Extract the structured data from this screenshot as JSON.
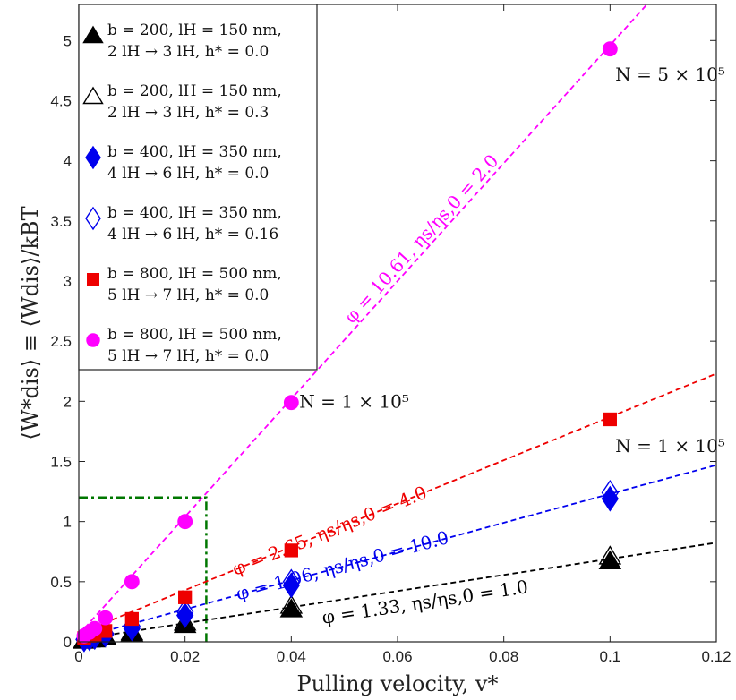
{
  "chart_data": {
    "type": "scatter",
    "title": "",
    "xlabel": "Pulling velocity, v*",
    "ylabel": "⟨W*dis⟩ ≡ ⟨Wdis⟩/kBT",
    "xlim": [
      0,
      0.12
    ],
    "ylim": [
      0,
      5.3
    ],
    "xticks": [
      "0",
      "0.02",
      "0.04",
      "0.06",
      "0.08",
      "0.1",
      "0.12"
    ],
    "xtick_values": [
      0,
      0.02,
      0.04,
      0.06,
      0.08,
      0.1,
      0.12
    ],
    "yticks": [
      "0",
      "0.5",
      "1",
      "1.5",
      "2",
      "2.5",
      "3",
      "3.5",
      "4",
      "4.5",
      "5"
    ],
    "ytick_values": [
      0,
      0.5,
      1,
      1.5,
      2,
      2.5,
      3,
      3.5,
      4,
      4.5,
      5
    ],
    "series": [
      {
        "name": "b = 200, lH = 150 nm, 2 lH → 3 lH, h* = 0.0",
        "legend_line1": "b = 200, lH = 150 nm,",
        "legend_line2": "2 lH → 3 lH, h* = 0.0",
        "marker": "triangle-filled",
        "color": "#000000",
        "x": [
          0.001,
          0.002,
          0.003,
          0.005,
          0.01,
          0.02,
          0.04,
          0.1
        ],
        "y": [
          0.01,
          0.02,
          0.02,
          0.04,
          0.07,
          0.14,
          0.27,
          0.67
        ]
      },
      {
        "name": "b = 200, lH = 150 nm, 2 lH → 3 lH, h* = 0.3",
        "legend_line1": "b = 200, lH = 150 nm,",
        "legend_line2": "2 lH → 3 lH, h* = 0.3",
        "marker": "triangle-open",
        "color": "#000000",
        "x": [
          0.001,
          0.002,
          0.003,
          0.005,
          0.01,
          0.02,
          0.04,
          0.1
        ],
        "y": [
          0.01,
          0.02,
          0.03,
          0.04,
          0.08,
          0.16,
          0.3,
          0.71
        ]
      },
      {
        "name": "b = 400, lH = 350 nm, 4 lH → 6 lH, h* = 0.0",
        "legend_line1": "b = 400, lH = 350 nm,",
        "legend_line2": "4 lH → 6 lH, h* = 0.0",
        "marker": "diamond-filled",
        "color": "#0000ee",
        "x": [
          0.001,
          0.002,
          0.003,
          0.005,
          0.01,
          0.02,
          0.04,
          0.1
        ],
        "y": [
          0.02,
          0.03,
          0.04,
          0.06,
          0.11,
          0.22,
          0.47,
          1.19
        ]
      },
      {
        "name": "b = 400, lH = 350 nm, 4 lH → 6 lH, h* = 0.16",
        "legend_line1": "b = 400, lH = 350 nm,",
        "legend_line2": "4 lH → 6 lH, h* = 0.16",
        "marker": "diamond-open",
        "color": "#0000ee",
        "x": [
          0.001,
          0.002,
          0.003,
          0.005,
          0.01,
          0.02,
          0.04,
          0.1
        ],
        "y": [
          0.02,
          0.03,
          0.05,
          0.07,
          0.13,
          0.25,
          0.5,
          1.24
        ]
      },
      {
        "name": "b = 800, lH = 500 nm, 5 lH → 7 lH, h* = 0.0 (squares)",
        "legend_line1": "b = 800, lH = 500 nm,",
        "legend_line2": "5 lH → 7 lH, h* = 0.0",
        "marker": "square-filled",
        "color": "#ee0000",
        "x": [
          0.001,
          0.002,
          0.003,
          0.005,
          0.01,
          0.02,
          0.04,
          0.1
        ],
        "y": [
          0.03,
          0.05,
          0.06,
          0.09,
          0.19,
          0.37,
          0.76,
          1.85
        ]
      },
      {
        "name": "b = 800, lH = 500 nm, 5 lH → 7 lH, h* = 0.0 (circles)",
        "legend_line1": "b = 800, lH = 500 nm,",
        "legend_line2": "5 lH → 7 lH, h* = 0.0",
        "marker": "circle-filled",
        "color": "#ff00ff",
        "x": [
          0.001,
          0.002,
          0.003,
          0.005,
          0.01,
          0.02,
          0.04,
          0.1
        ],
        "y": [
          0.05,
          0.08,
          0.11,
          0.2,
          0.5,
          1.0,
          1.99,
          4.93
        ]
      }
    ],
    "fit_lines": [
      {
        "label": "φ = 1.33, ηs/ηs,0 = 1.0",
        "color": "#000000",
        "slope": 6.7,
        "intercept": 0.02
      },
      {
        "label": "φ = 1.06, ηs/ηs,0 = 10.0",
        "color": "#0000ee",
        "slope": 12.0,
        "intercept": 0.03
      },
      {
        "label": "φ = 2.65, ηs/ηs,0 = 4.0",
        "color": "#ee0000",
        "slope": 18.0,
        "intercept": 0.07
      },
      {
        "label": "φ = 10.61, ηs/ηs,0 = 2.0",
        "color": "#ff00ff",
        "slope": 49.0,
        "intercept": 0.06
      }
    ],
    "inset_box": {
      "x": [
        0,
        0.024
      ],
      "y": [
        0,
        1.2
      ],
      "color": "#007700"
    },
    "annotations": [
      {
        "text": "N = 5 × 10⁵",
        "x": 0.101,
        "y": 4.72
      },
      {
        "text": "N = 1 × 10⁵",
        "x": 0.0415,
        "y": 2.0
      },
      {
        "text": "N = 1 × 10⁵",
        "x": 0.101,
        "y": 1.63
      }
    ]
  }
}
